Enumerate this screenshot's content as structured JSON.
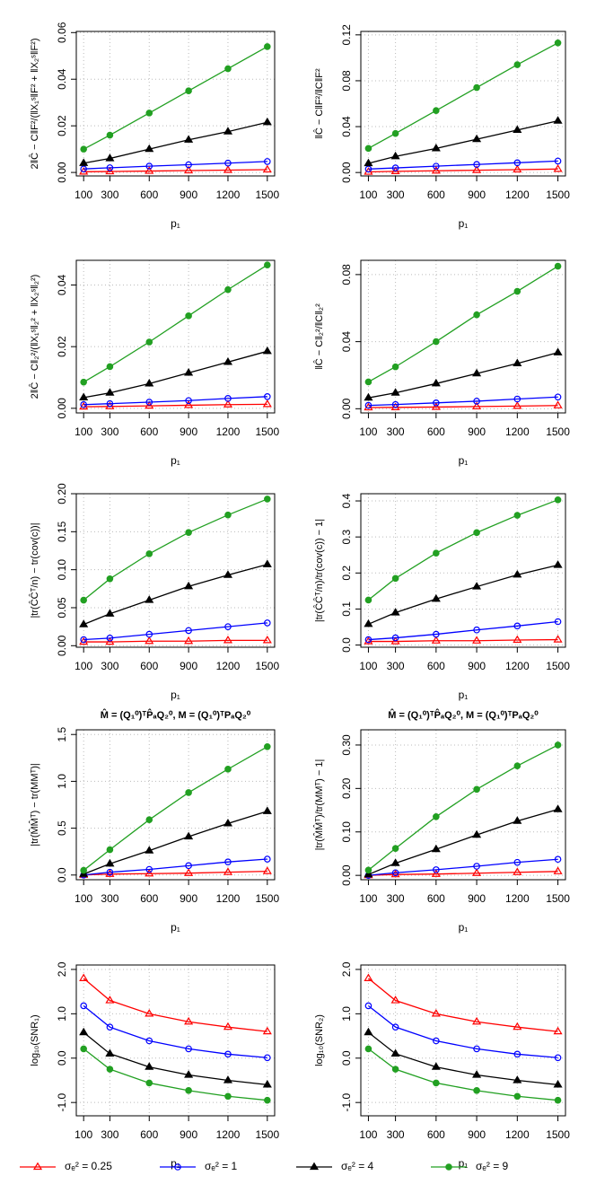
{
  "chart_data": [
    {
      "type": "line",
      "ylabel": "2‖Ĉ − C‖F²/(‖X₁ˢ‖F² + ‖X₂ˢ‖F²)",
      "xlabel": "p₁",
      "x": [
        100,
        300,
        600,
        900,
        1200,
        1500
      ],
      "xlim": [
        44,
        1556
      ],
      "xticks": [
        100,
        300,
        600,
        900,
        1200,
        1500
      ],
      "ylim": [
        -0.0015,
        0.0605
      ],
      "yticks": [
        {
          "value": 0,
          "label": "0.00"
        },
        {
          "value": 0.02,
          "label": "0.02"
        },
        {
          "value": 0.04,
          "label": "0.04"
        },
        {
          "value": 0.06,
          "label": "0.06"
        }
      ],
      "grid": true,
      "series": [
        {
          "name": "σₑ² = 0.25",
          "color": "#ff0000",
          "marker": "triangle-open",
          "values": [
            0.0003,
            0.0004,
            0.0006,
            0.0008,
            0.001,
            0.0012
          ]
        },
        {
          "name": "σₑ² = 1",
          "color": "#0000ff",
          "marker": "circle-open",
          "values": [
            0.0015,
            0.002,
            0.0027,
            0.0033,
            0.004,
            0.0047
          ]
        },
        {
          "name": "σₑ² = 4",
          "color": "#000000",
          "marker": "triangle",
          "values": [
            0.004,
            0.006,
            0.01,
            0.014,
            0.0175,
            0.0215
          ]
        },
        {
          "name": "σₑ² = 9",
          "color": "#22a022",
          "marker": "circle",
          "values": [
            0.01,
            0.016,
            0.0255,
            0.035,
            0.0445,
            0.054
          ]
        }
      ]
    },
    {
      "type": "line",
      "ylabel": "‖Ĉ − C‖F²/‖C‖F²",
      "xlabel": "p₁",
      "x": [
        100,
        300,
        600,
        900,
        1200,
        1500
      ],
      "xlim": [
        44,
        1556
      ],
      "xticks": [
        100,
        300,
        600,
        900,
        1200,
        1500
      ],
      "ylim": [
        -0.003,
        0.123
      ],
      "yticks": [
        {
          "value": 0,
          "label": "0.00"
        },
        {
          "value": 0.04,
          "label": "0.04"
        },
        {
          "value": 0.08,
          "label": "0.08"
        },
        {
          "value": 0.12,
          "label": "0.12"
        }
      ],
      "grid": true,
      "series": [
        {
          "name": "σₑ² = 0.25",
          "color": "#ff0000",
          "marker": "triangle-open",
          "values": [
            0.0005,
            0.001,
            0.0015,
            0.002,
            0.0025,
            0.003
          ]
        },
        {
          "name": "σₑ² = 1",
          "color": "#0000ff",
          "marker": "circle-open",
          "values": [
            0.003,
            0.004,
            0.0055,
            0.007,
            0.0085,
            0.01
          ]
        },
        {
          "name": "σₑ² = 4",
          "color": "#000000",
          "marker": "triangle",
          "values": [
            0.008,
            0.014,
            0.021,
            0.029,
            0.037,
            0.045
          ]
        },
        {
          "name": "σₑ² = 9",
          "color": "#22a022",
          "marker": "circle",
          "values": [
            0.021,
            0.034,
            0.054,
            0.074,
            0.094,
            0.113
          ]
        }
      ]
    },
    {
      "type": "line",
      "ylabel": "2‖Ĉ − C‖₂²/(‖X₁ˢ‖₂² + ‖X₂ˢ‖₂²)",
      "xlabel": "p₁",
      "x": [
        100,
        300,
        600,
        900,
        1200,
        1500
      ],
      "xlim": [
        44,
        1556
      ],
      "xticks": [
        100,
        300,
        600,
        900,
        1200,
        1500
      ],
      "ylim": [
        -0.0015,
        0.048
      ],
      "yticks": [
        {
          "value": 0,
          "label": "0.00"
        },
        {
          "value": 0.02,
          "label": "0.02"
        },
        {
          "value": 0.04,
          "label": "0.04"
        }
      ],
      "grid": true,
      "series": [
        {
          "name": "σₑ² = 0.25",
          "color": "#ff0000",
          "marker": "triangle-open",
          "values": [
            0.0005,
            0.0006,
            0.0008,
            0.001,
            0.0012,
            0.0013
          ]
        },
        {
          "name": "σₑ² = 1",
          "color": "#0000ff",
          "marker": "circle-open",
          "values": [
            0.0012,
            0.0015,
            0.002,
            0.0025,
            0.0032,
            0.0038
          ]
        },
        {
          "name": "σₑ² = 4",
          "color": "#000000",
          "marker": "triangle",
          "values": [
            0.0035,
            0.005,
            0.008,
            0.0115,
            0.015,
            0.0185
          ]
        },
        {
          "name": "σₑ² = 9",
          "color": "#22a022",
          "marker": "circle",
          "values": [
            0.0085,
            0.0135,
            0.0215,
            0.03,
            0.0385,
            0.0465
          ]
        }
      ]
    },
    {
      "type": "line",
      "ylabel": "‖Ĉ − C‖₂²/‖C‖₂²",
      "xlabel": "p₁",
      "x": [
        100,
        300,
        600,
        900,
        1200,
        1500
      ],
      "xlim": [
        44,
        1556
      ],
      "xticks": [
        100,
        300,
        600,
        900,
        1200,
        1500
      ],
      "ylim": [
        -0.0025,
        0.0885
      ],
      "yticks": [
        {
          "value": 0,
          "label": "0.00"
        },
        {
          "value": 0.04,
          "label": "0.04"
        },
        {
          "value": 0.08,
          "label": "0.08"
        }
      ],
      "grid": true,
      "series": [
        {
          "name": "σₑ² = 0.25",
          "color": "#ff0000",
          "marker": "triangle-open",
          "values": [
            0.0007,
            0.0008,
            0.001,
            0.0013,
            0.0016,
            0.0019
          ]
        },
        {
          "name": "σₑ² = 1",
          "color": "#0000ff",
          "marker": "circle-open",
          "values": [
            0.002,
            0.0025,
            0.0035,
            0.0045,
            0.0058,
            0.007
          ]
        },
        {
          "name": "σₑ² = 4",
          "color": "#000000",
          "marker": "triangle",
          "values": [
            0.0065,
            0.0095,
            0.015,
            0.021,
            0.027,
            0.0335
          ]
        },
        {
          "name": "σₑ² = 9",
          "color": "#22a022",
          "marker": "circle",
          "values": [
            0.016,
            0.025,
            0.04,
            0.056,
            0.07,
            0.085
          ]
        }
      ]
    },
    {
      "type": "line",
      "ylabel": "|tr(ĈĈᵀ/n) − tr(cov(c))|",
      "xlabel": "p₁",
      "x": [
        100,
        300,
        600,
        900,
        1200,
        1500
      ],
      "xlim": [
        44,
        1556
      ],
      "xticks": [
        100,
        300,
        600,
        900,
        1200,
        1500
      ],
      "ylim": [
        -0.002,
        0.2
      ],
      "yticks": [
        {
          "value": 0,
          "label": "0.00"
        },
        {
          "value": 0.05,
          "label": "0.05"
        },
        {
          "value": 0.1,
          "label": "0.10"
        },
        {
          "value": 0.15,
          "label": "0.15"
        },
        {
          "value": 0.2,
          "label": "0.20"
        }
      ],
      "grid": true,
      "series": [
        {
          "name": "σₑ² = 0.25",
          "color": "#ff0000",
          "marker": "triangle-open",
          "values": [
            0.005,
            0.005,
            0.006,
            0.006,
            0.007,
            0.007
          ]
        },
        {
          "name": "σₑ² = 1",
          "color": "#0000ff",
          "marker": "circle-open",
          "values": [
            0.008,
            0.01,
            0.015,
            0.02,
            0.025,
            0.03
          ]
        },
        {
          "name": "σₑ² = 4",
          "color": "#000000",
          "marker": "triangle",
          "values": [
            0.028,
            0.042,
            0.06,
            0.078,
            0.093,
            0.107
          ]
        },
        {
          "name": "σₑ² = 9",
          "color": "#22a022",
          "marker": "circle",
          "values": [
            0.06,
            0.088,
            0.121,
            0.149,
            0.172,
            0.193
          ]
        }
      ]
    },
    {
      "type": "line",
      "ylabel": "|tr(ĈĈᵀ/n)/tr(cov(c)) − 1|",
      "xlabel": "p₁",
      "x": [
        100,
        300,
        600,
        900,
        1200,
        1500
      ],
      "xlim": [
        44,
        1556
      ],
      "xticks": [
        100,
        300,
        600,
        900,
        1200,
        1500
      ],
      "ylim": [
        -0.006,
        0.42
      ],
      "yticks": [
        {
          "value": 0,
          "label": "0.0"
        },
        {
          "value": 0.1,
          "label": "0.1"
        },
        {
          "value": 0.2,
          "label": "0.2"
        },
        {
          "value": 0.3,
          "label": "0.3"
        },
        {
          "value": 0.4,
          "label": "0.4"
        }
      ],
      "grid": true,
      "series": [
        {
          "name": "σₑ² = 0.25",
          "color": "#ff0000",
          "marker": "triangle-open",
          "values": [
            0.01,
            0.01,
            0.012,
            0.012,
            0.014,
            0.015
          ]
        },
        {
          "name": "σₑ² = 1",
          "color": "#0000ff",
          "marker": "circle-open",
          "values": [
            0.015,
            0.02,
            0.03,
            0.042,
            0.053,
            0.065
          ]
        },
        {
          "name": "σₑ² = 4",
          "color": "#000000",
          "marker": "triangle",
          "values": [
            0.058,
            0.09,
            0.128,
            0.162,
            0.195,
            0.222
          ]
        },
        {
          "name": "σₑ² = 9",
          "color": "#22a022",
          "marker": "circle",
          "values": [
            0.125,
            0.185,
            0.255,
            0.312,
            0.36,
            0.403
          ]
        }
      ]
    },
    {
      "type": "line",
      "title": "M̂ = (Q₁⁰)ᵀP̂ₐQ₂⁰,  M = (Q₁⁰)ᵀPₐQ₂⁰",
      "ylabel": "|tr(M̂M̂ᵀ) − tr(MMᵀ)|",
      "xlabel": "p₁",
      "x": [
        100,
        300,
        600,
        900,
        1200,
        1500
      ],
      "xlim": [
        44,
        1556
      ],
      "xticks": [
        100,
        300,
        600,
        900,
        1200,
        1500
      ],
      "ylim": [
        -0.05,
        1.55
      ],
      "yticks": [
        {
          "value": 0,
          "label": "0.0"
        },
        0.5,
        {
          "value": 1,
          "label": "1.0"
        },
        1.5
      ],
      "grid": true,
      "series": [
        {
          "name": "σₑ² = 0.25",
          "color": "#ff0000",
          "marker": "triangle-open",
          "values": [
            0.0,
            0.01,
            0.015,
            0.02,
            0.03,
            0.04
          ]
        },
        {
          "name": "σₑ² = 1",
          "color": "#0000ff",
          "marker": "circle-open",
          "values": [
            0.0,
            0.03,
            0.06,
            0.1,
            0.14,
            0.17
          ]
        },
        {
          "name": "σₑ² = 4",
          "color": "#000000",
          "marker": "triangle",
          "values": [
            0.01,
            0.12,
            0.26,
            0.41,
            0.55,
            0.68
          ]
        },
        {
          "name": "σₑ² = 9",
          "color": "#22a022",
          "marker": "circle",
          "values": [
            0.05,
            0.27,
            0.59,
            0.88,
            1.13,
            1.37
          ]
        }
      ]
    },
    {
      "type": "line",
      "title": "M̂ = (Q₁⁰)ᵀP̂ₐQ₂⁰,  M = (Q₁⁰)ᵀPₐQ₂⁰",
      "ylabel": "|tr(M̂M̂ᵀ)/tr(MMᵀ) − 1|",
      "xlabel": "p₁",
      "x": [
        100,
        300,
        600,
        900,
        1200,
        1500
      ],
      "xlim": [
        44,
        1556
      ],
      "xticks": [
        100,
        300,
        600,
        900,
        1200,
        1500
      ],
      "ylim": [
        -0.01,
        0.335
      ],
      "yticks": [
        {
          "value": 0,
          "label": "0.00"
        },
        {
          "value": 0.1,
          "label": "0.10"
        },
        {
          "value": 0.2,
          "label": "0.20"
        },
        {
          "value": 0.3,
          "label": "0.30"
        }
      ],
      "grid": true,
      "series": [
        {
          "name": "σₑ² = 0.25",
          "color": "#ff0000",
          "marker": "triangle-open",
          "values": [
            0.0,
            0.002,
            0.003,
            0.005,
            0.007,
            0.009
          ]
        },
        {
          "name": "σₑ² = 1",
          "color": "#0000ff",
          "marker": "circle-open",
          "values": [
            0.0,
            0.006,
            0.013,
            0.021,
            0.03,
            0.037
          ]
        },
        {
          "name": "σₑ² = 4",
          "color": "#000000",
          "marker": "triangle",
          "values": [
            0.002,
            0.028,
            0.06,
            0.093,
            0.125,
            0.152
          ]
        },
        {
          "name": "σₑ² = 9",
          "color": "#22a022",
          "marker": "circle",
          "values": [
            0.012,
            0.062,
            0.135,
            0.198,
            0.252,
            0.3
          ]
        }
      ]
    },
    {
      "type": "line",
      "ylabel": "log₁₀(SNR₁)",
      "xlabel": "p₁",
      "x": [
        100,
        300,
        600,
        900,
        1200,
        1500
      ],
      "xlim": [
        44,
        1556
      ],
      "xticks": [
        100,
        300,
        600,
        900,
        1200,
        1500
      ],
      "ylim": [
        -1.3,
        2.1
      ],
      "yticks": [
        {
          "value": -1,
          "label": "-1.0"
        },
        {
          "value": 0,
          "label": "0.0"
        },
        {
          "value": 1,
          "label": "1.0"
        },
        {
          "value": 2,
          "label": "2.0"
        }
      ],
      "grid": true,
      "series": [
        {
          "name": "σₑ² = 0.25",
          "color": "#ff0000",
          "marker": "triangle-open",
          "values": [
            1.8,
            1.3,
            1.0,
            0.82,
            0.7,
            0.6
          ]
        },
        {
          "name": "σₑ² = 1",
          "color": "#0000ff",
          "marker": "circle-open",
          "values": [
            1.18,
            0.7,
            0.39,
            0.21,
            0.09,
            0.01
          ]
        },
        {
          "name": "σₑ² = 4",
          "color": "#000000",
          "marker": "triangle",
          "values": [
            0.58,
            0.1,
            -0.2,
            -0.38,
            -0.5,
            -0.6
          ]
        },
        {
          "name": "σₑ² = 9",
          "color": "#22a022",
          "marker": "circle",
          "values": [
            0.21,
            -0.25,
            -0.56,
            -0.73,
            -0.86,
            -0.95
          ]
        }
      ]
    },
    {
      "type": "line",
      "ylabel": "log₁₀(SNR₂)",
      "xlabel": "p₁",
      "x": [
        100,
        300,
        600,
        900,
        1200,
        1500
      ],
      "xlim": [
        44,
        1556
      ],
      "xticks": [
        100,
        300,
        600,
        900,
        1200,
        1500
      ],
      "ylim": [
        -1.3,
        2.1
      ],
      "yticks": [
        {
          "value": -1,
          "label": "-1.0"
        },
        {
          "value": 0,
          "label": "0.0"
        },
        {
          "value": 1,
          "label": "1.0"
        },
        {
          "value": 2,
          "label": "2.0"
        }
      ],
      "grid": true,
      "series": [
        {
          "name": "σₑ² = 0.25",
          "color": "#ff0000",
          "marker": "triangle-open",
          "values": [
            1.8,
            1.3,
            1.0,
            0.82,
            0.7,
            0.6
          ]
        },
        {
          "name": "σₑ² = 1",
          "color": "#0000ff",
          "marker": "circle-open",
          "values": [
            1.18,
            0.7,
            0.39,
            0.21,
            0.09,
            0.01
          ]
        },
        {
          "name": "σₑ² = 4",
          "color": "#000000",
          "marker": "triangle",
          "values": [
            0.58,
            0.1,
            -0.2,
            -0.38,
            -0.5,
            -0.6
          ]
        },
        {
          "name": "σₑ² = 9",
          "color": "#22a022",
          "marker": "circle",
          "values": [
            0.21,
            -0.25,
            -0.56,
            -0.73,
            -0.86,
            -0.95
          ]
        }
      ]
    }
  ]
}
